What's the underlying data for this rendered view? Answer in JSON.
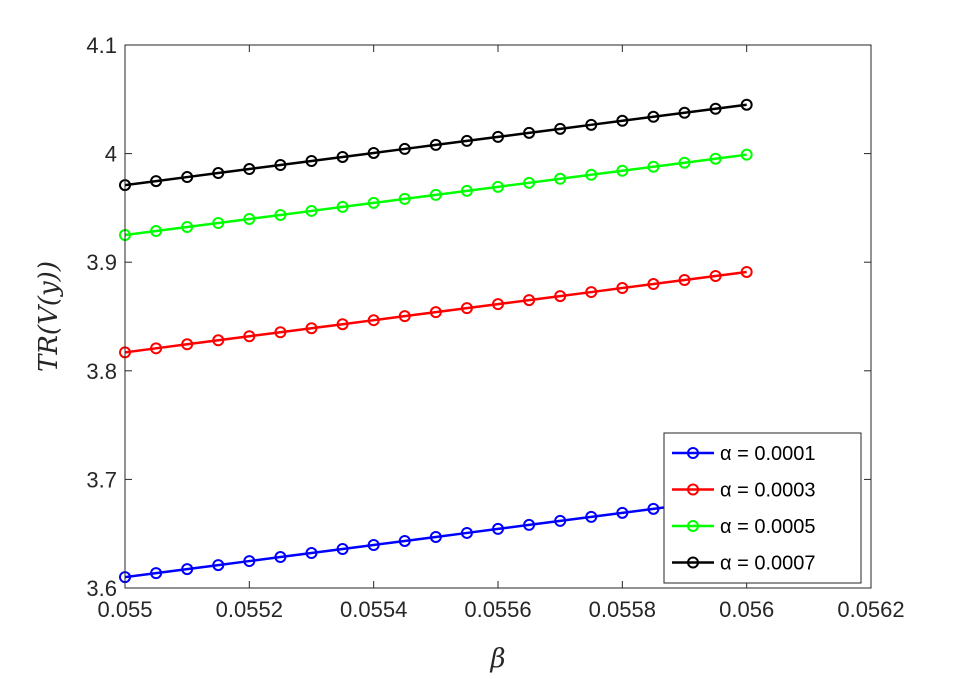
{
  "chart_data": {
    "type": "line",
    "title": "",
    "xlabel": "β",
    "ylabel": "TR(V(y))",
    "xlim": [
      0.055,
      0.0562
    ],
    "ylim": [
      3.6,
      4.1
    ],
    "xticks": [
      "0.055",
      "0.0552",
      "0.0554",
      "0.0556",
      "0.0558",
      "0.056",
      "0.0562"
    ],
    "yticks": [
      "3.6",
      "3.7",
      "3.8",
      "3.9",
      "4",
      "4.1"
    ],
    "grid": false,
    "legend_position": "bottom-right",
    "marker": "circle",
    "series": [
      {
        "name": "α = 0.0001",
        "color": "#0000ff",
        "x": [
          0.055,
          0.05505,
          0.0551,
          0.05515,
          0.0552,
          0.05525,
          0.0553,
          0.05535,
          0.0554,
          0.05545,
          0.0555,
          0.05555,
          0.0556,
          0.05565,
          0.0557,
          0.05575,
          0.0558,
          0.05585,
          0.0559,
          0.05595,
          0.056
        ],
        "y": [
          3.61,
          3.6137,
          3.6174,
          3.6211,
          3.6248,
          3.6285,
          3.6322,
          3.6359,
          3.6396,
          3.6433,
          3.647,
          3.6507,
          3.6544,
          3.6581,
          3.6618,
          3.6655,
          3.6692,
          3.6729,
          3.6766,
          3.6803,
          3.684
        ]
      },
      {
        "name": "α = 0.0003",
        "color": "#ff0000",
        "x": [
          0.055,
          0.05505,
          0.0551,
          0.05515,
          0.0552,
          0.05525,
          0.0553,
          0.05535,
          0.0554,
          0.05545,
          0.0555,
          0.05555,
          0.0556,
          0.05565,
          0.0557,
          0.05575,
          0.0558,
          0.05585,
          0.0559,
          0.05595,
          0.056
        ],
        "y": [
          3.817,
          3.8207,
          3.8244,
          3.8281,
          3.8318,
          3.8355,
          3.8392,
          3.8429,
          3.8466,
          3.8503,
          3.854,
          3.8577,
          3.8614,
          3.8651,
          3.8688,
          3.8725,
          3.8762,
          3.8799,
          3.8836,
          3.8873,
          3.891
        ]
      },
      {
        "name": "α = 0.0005",
        "color": "#00ff00",
        "x": [
          0.055,
          0.05505,
          0.0551,
          0.05515,
          0.0552,
          0.05525,
          0.0553,
          0.05535,
          0.0554,
          0.05545,
          0.0555,
          0.05555,
          0.0556,
          0.05565,
          0.0557,
          0.05575,
          0.0558,
          0.05585,
          0.0559,
          0.05595,
          0.056
        ],
        "y": [
          3.925,
          3.9287,
          3.9324,
          3.9361,
          3.9398,
          3.9435,
          3.9472,
          3.9509,
          3.9546,
          3.9583,
          3.962,
          3.9657,
          3.9694,
          3.9731,
          3.9768,
          3.9805,
          3.9842,
          3.9879,
          3.9916,
          3.9953,
          3.999
        ]
      },
      {
        "name": "α = 0.0007",
        "color": "#000000",
        "x": [
          0.055,
          0.05505,
          0.0551,
          0.05515,
          0.0552,
          0.05525,
          0.0553,
          0.05535,
          0.0554,
          0.05545,
          0.0555,
          0.05555,
          0.0556,
          0.05565,
          0.0557,
          0.05575,
          0.0558,
          0.05585,
          0.0559,
          0.05595,
          0.056
        ],
        "y": [
          3.971,
          3.9747,
          3.9784,
          3.9821,
          3.9858,
          3.9895,
          3.9932,
          3.9969,
          4.0006,
          4.0043,
          4.008,
          4.0117,
          4.0154,
          4.0191,
          4.0228,
          4.0265,
          4.0302,
          4.0339,
          4.0376,
          4.0413,
          4.045
        ]
      }
    ]
  }
}
